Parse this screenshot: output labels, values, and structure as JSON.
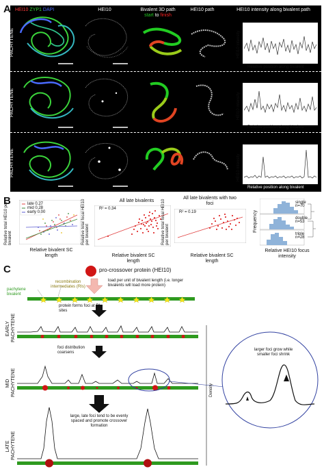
{
  "panelA": {
    "letter": "A",
    "channels": {
      "hei10": "HEI10",
      "zyp1": "ZYP1",
      "dapi": "DAPI"
    },
    "col_hei10": "HEI10",
    "col_bivalent": "Bivalent 3D path",
    "col_start": "start",
    "col_to": "to",
    "col_finish": "finish",
    "col_hei10_path": "HEI10 path",
    "col_intensity_title": "HEI10 intensity along bivalent path",
    "ylabel": "HEI10 intensity",
    "xlabel": "Relative position along bivalent",
    "rows": [
      {
        "stage_top": "EARLY",
        "stage_bottom": "PACHYTENE"
      },
      {
        "stage_top": "MID",
        "stage_bottom": "PACHYTENE"
      },
      {
        "stage_top": "LATE",
        "stage_bottom": "PACHYTENE"
      }
    ],
    "colors": {
      "hei10": "#ff3b3b",
      "zyp1": "#3bd43b",
      "dapi": "#4a6bff",
      "start": "#22cc22",
      "finish": "#ff2222"
    }
  },
  "panelB": {
    "letter": "B",
    "plot1": {
      "ylabel": "Relative total HEI10 per bivalent",
      "xlabel": "Relative bivalent SC length",
      "legend": [
        "late 0.27",
        "mid 0.28",
        "early 0.00"
      ],
      "legend_colors": [
        "#e04040",
        "#3a8a3a",
        "#5a5ad0"
      ]
    },
    "plot2": {
      "title": "All late bivalents",
      "r2": "R² = 0.34",
      "ylabel": "Relative total focal HEI10 per bivalent",
      "xlabel": "Relative bivalent SC length"
    },
    "plot3": {
      "title": "All late bivalents with two foci",
      "r2": "R² = 0.19",
      "ylabel": "Relative total focal HEI10 per bivalent",
      "xlabel": "Relative bivalent SC length"
    },
    "plot4": {
      "ylabel": "Frequency",
      "xlabel": "Relative HEI10 focus intensity",
      "rows": [
        "single n=70",
        "double n=53",
        "triple n=28"
      ]
    }
  },
  "panelC": {
    "letter": "C",
    "legend_protein": "pro-crossover protein (HEI10)",
    "load_text": "load per unit of bivalent length (i.e. longer bivalents will load more protein)",
    "pachytene_bivalent": "pachytene bivalent",
    "recomb_intermediates": "recombination intermediates (RIs)",
    "early_top": "EARLY",
    "early_bottom": "PACHYTENE",
    "early_text": "protein forms foci at RI sites",
    "mid_top": "MID",
    "mid_bottom": "PACHYTENE",
    "mid_text": "foci distribution coarsens",
    "late_top": "LATE",
    "late_bottom": "PACHYTENE",
    "late_text": "large, late foci tend to be evenly spaced and promote crossover formation",
    "density": "Density",
    "zoom_text": "larger foci grow while smaller foci shrink",
    "colors": {
      "bivalent": "#2e9a1f",
      "star": "#f5e61a",
      "protein": "#d11515",
      "arrow_pink": "#f4b8b0"
    }
  }
}
